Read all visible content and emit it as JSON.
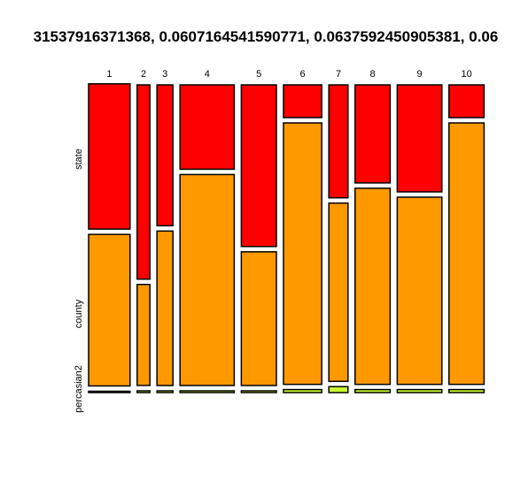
{
  "chart_data": {
    "type": "mosaic",
    "title": "31537916371368, 0.0607164541590771, 0.0637592450905381, 0.06",
    "x_categories": [
      "1",
      "2",
      "3",
      "4",
      "5",
      "6",
      "7",
      "8",
      "9",
      "10"
    ],
    "column_widths": [
      0.13,
      0.04,
      0.05,
      0.17,
      0.11,
      0.12,
      0.06,
      0.11,
      0.14,
      0.11
    ],
    "y_levels": [
      "percasian2",
      "county",
      "state"
    ],
    "segments": [
      {
        "level": "percasian2",
        "color": "#CCFF33",
        "fractions": [
          0.001,
          0.006,
          0.006,
          0.006,
          0.006,
          0.01,
          0.02,
          0.01,
          0.01,
          0.01
        ]
      },
      {
        "level": "county",
        "color": "#FF9900",
        "fractions": [
          0.51,
          0.34,
          0.52,
          0.71,
          0.45,
          0.88,
          0.6,
          0.66,
          0.63,
          0.88
        ]
      },
      {
        "level": "state",
        "color": "#FF0000",
        "fractions": [
          0.489,
          0.654,
          0.474,
          0.284,
          0.544,
          0.11,
          0.38,
          0.33,
          0.36,
          0.11
        ]
      }
    ]
  }
}
